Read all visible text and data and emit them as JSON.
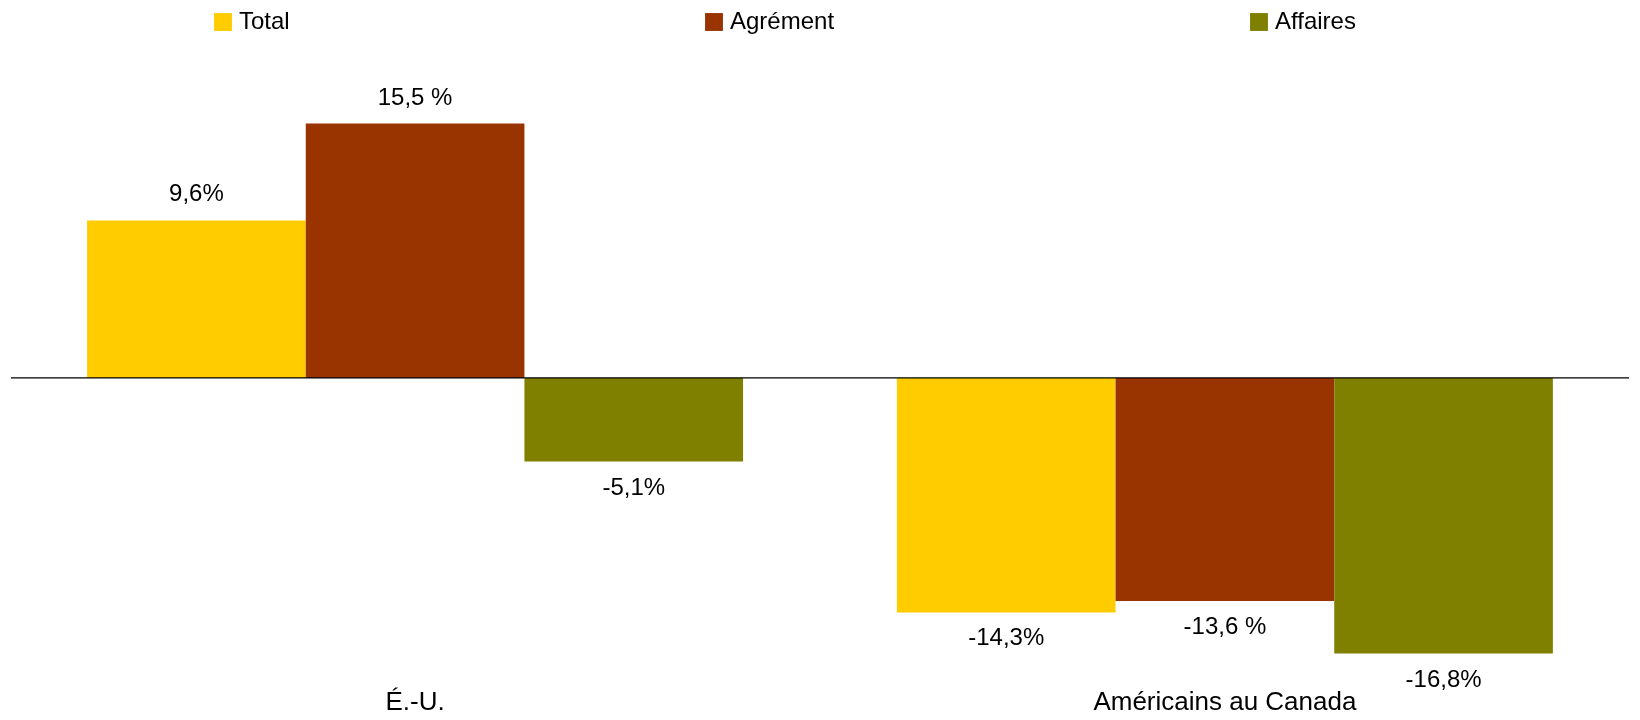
{
  "chart_data": {
    "type": "bar",
    "categories": [
      "É.-U.",
      "Américains au Canada"
    ],
    "series": [
      {
        "name": "Total",
        "color": "#ffcc00",
        "values": [
          9.6,
          -14.3
        ],
        "value_labels": [
          "9,6%",
          "-14,3%"
        ]
      },
      {
        "name": "Agrément",
        "color": "#993300",
        "values": [
          15.5,
          -13.6
        ],
        "value_labels": [
          "15,5 %",
          "-13,6 %"
        ]
      },
      {
        "name": "Affaires",
        "color": "#808000",
        "values": [
          -5.1,
          -16.8
        ],
        "value_labels": [
          "-5,1%",
          "-16,8%"
        ]
      }
    ],
    "legend": "top"
  }
}
